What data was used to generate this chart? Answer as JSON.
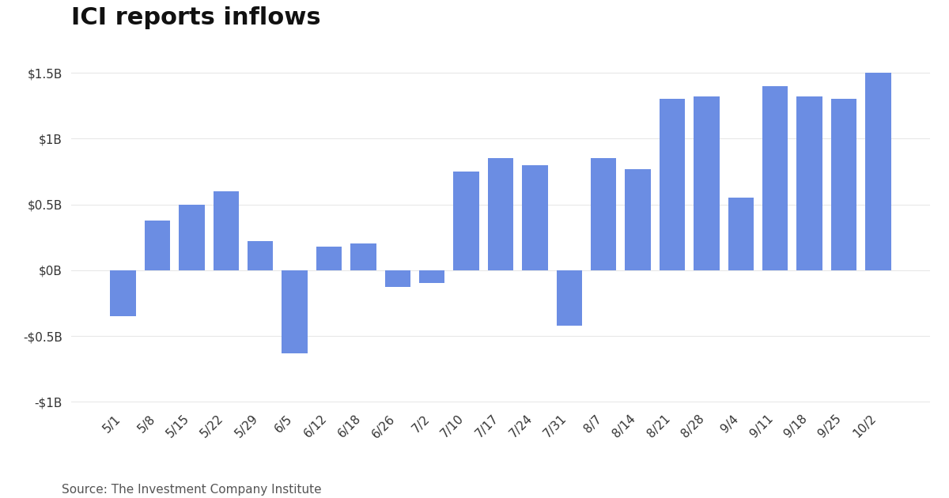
{
  "title": "ICI reports inflows",
  "source": "Source: The Investment Company Institute",
  "categories": [
    "5/1",
    "5/8",
    "5/15",
    "5/22",
    "5/29",
    "6/5",
    "6/12",
    "6/18",
    "6/26",
    "7/2",
    "7/10",
    "7/17",
    "7/24",
    "7/31",
    "8/7",
    "8/14",
    "8/21",
    "8/28",
    "9/4",
    "9/11",
    "9/18",
    "9/25",
    "10/2"
  ],
  "values": [
    -0.35,
    0.38,
    0.5,
    0.6,
    0.22,
    -0.63,
    0.18,
    0.2,
    -0.13,
    -0.1,
    0.75,
    0.85,
    0.8,
    -0.42,
    0.85,
    0.77,
    1.3,
    1.32,
    0.55,
    1.4,
    1.32,
    1.3,
    1.5
  ],
  "bar_color": "#6B8DE3",
  "background_color": "#ffffff",
  "ylim": [
    -1.05,
    1.75
  ],
  "yticks": [
    -1.0,
    -0.5,
    0.0,
    0.5,
    1.0,
    1.5
  ],
  "ytick_labels": [
    "-$1B",
    "-$0.5B",
    "$0B",
    "$0.5B",
    "$1B",
    "$1.5B"
  ],
  "title_fontsize": 22,
  "tick_fontsize": 11,
  "source_fontsize": 11,
  "grid_color": "#e8e8e8",
  "text_color": "#333333"
}
